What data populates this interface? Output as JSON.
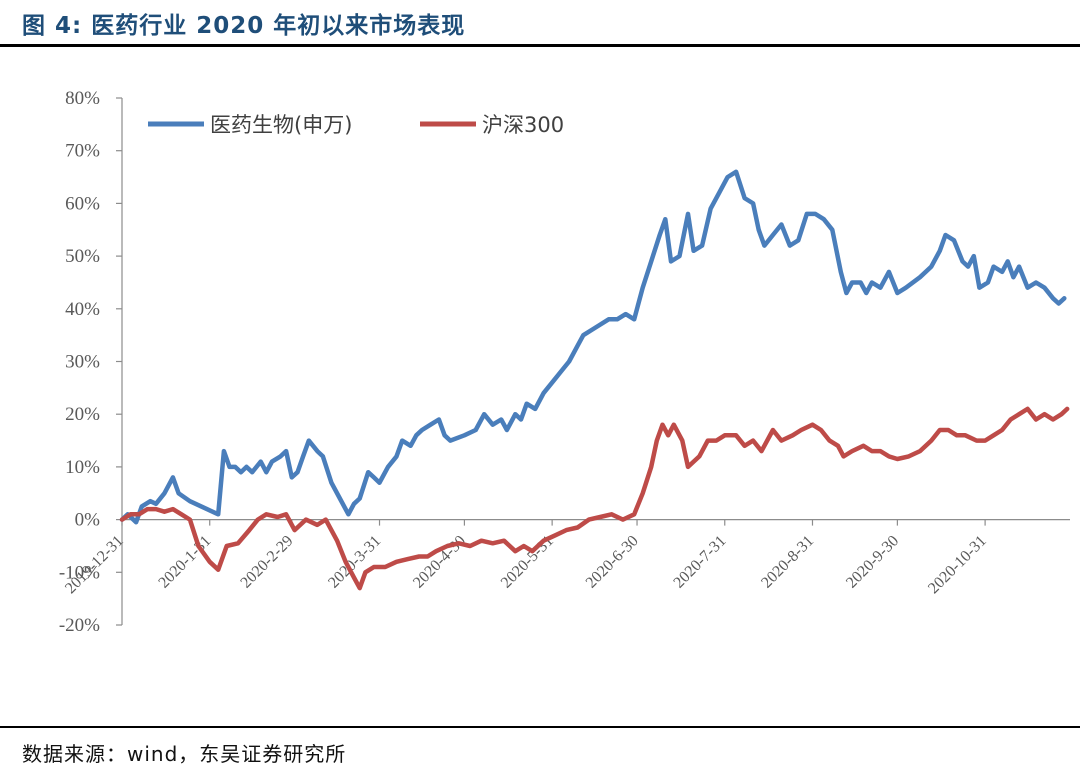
{
  "figure": {
    "title": "图 4: 医药行业 2020 年初以来市场表现",
    "source": "数据来源：wind，东吴证券研究所"
  },
  "colors": {
    "series_blue": "#4a7ebb",
    "series_red": "#be4b48",
    "axis": "#8c8c8c",
    "text": "#595959"
  },
  "chart_data": {
    "type": "line",
    "title": "",
    "xlabel": "",
    "ylabel": "",
    "ylim": [
      -0.2,
      0.8
    ],
    "yticks": [
      -0.2,
      -0.1,
      0.0,
      0.1,
      0.2,
      0.3,
      0.4,
      0.5,
      0.6,
      0.7,
      0.8
    ],
    "ytick_labels": [
      "-20%",
      "-10%",
      "0%",
      "10%",
      "20%",
      "30%",
      "40%",
      "50%",
      "60%",
      "70%",
      "80%"
    ],
    "xlim": [
      "2019-12-31",
      "2020-11-30"
    ],
    "xticks": [
      "2019-12-31",
      "2020-1-31",
      "2020-2-29",
      "2020-3-31",
      "2020-4-30",
      "2020-5-31",
      "2020-6-30",
      "2020-7-31",
      "2020-8-31",
      "2020-9-30",
      "2020-10-31"
    ],
    "grid": false,
    "legend_position": "top-left",
    "series": [
      {
        "name": "医药生物(申万)",
        "color": "#4a7ebb",
        "points": [
          [
            "2019-12-31",
            0.0
          ],
          [
            "2020-01-02",
            0.01
          ],
          [
            "2020-01-05",
            -0.005
          ],
          [
            "2020-01-07",
            0.025
          ],
          [
            "2020-01-10",
            0.035
          ],
          [
            "2020-01-12",
            0.03
          ],
          [
            "2020-01-15",
            0.05
          ],
          [
            "2020-01-18",
            0.08
          ],
          [
            "2020-01-20",
            0.05
          ],
          [
            "2020-01-24",
            0.035
          ],
          [
            "2020-01-30",
            0.02
          ],
          [
            "2020-02-03",
            0.01
          ],
          [
            "2020-02-05",
            0.13
          ],
          [
            "2020-02-07",
            0.1
          ],
          [
            "2020-02-09",
            0.1
          ],
          [
            "2020-02-11",
            0.09
          ],
          [
            "2020-02-13",
            0.1
          ],
          [
            "2020-02-15",
            0.09
          ],
          [
            "2020-02-18",
            0.11
          ],
          [
            "2020-02-20",
            0.09
          ],
          [
            "2020-02-22",
            0.11
          ],
          [
            "2020-02-25",
            0.12
          ],
          [
            "2020-02-27",
            0.13
          ],
          [
            "2020-02-29",
            0.08
          ],
          [
            "2020-03-02",
            0.09
          ],
          [
            "2020-03-04",
            0.12
          ],
          [
            "2020-03-06",
            0.15
          ],
          [
            "2020-03-09",
            0.13
          ],
          [
            "2020-03-11",
            0.12
          ],
          [
            "2020-03-14",
            0.07
          ],
          [
            "2020-03-17",
            0.04
          ],
          [
            "2020-03-20",
            0.01
          ],
          [
            "2020-03-22",
            0.03
          ],
          [
            "2020-03-24",
            0.04
          ],
          [
            "2020-03-27",
            0.09
          ],
          [
            "2020-03-29",
            0.08
          ],
          [
            "2020-03-31",
            0.07
          ],
          [
            "2020-04-03",
            0.1
          ],
          [
            "2020-04-06",
            0.12
          ],
          [
            "2020-04-08",
            0.15
          ],
          [
            "2020-04-11",
            0.14
          ],
          [
            "2020-04-13",
            0.16
          ],
          [
            "2020-04-15",
            0.17
          ],
          [
            "2020-04-18",
            0.18
          ],
          [
            "2020-04-21",
            0.19
          ],
          [
            "2020-04-23",
            0.16
          ],
          [
            "2020-04-25",
            0.15
          ],
          [
            "2020-04-30",
            0.16
          ],
          [
            "2020-05-04",
            0.17
          ],
          [
            "2020-05-07",
            0.2
          ],
          [
            "2020-05-10",
            0.18
          ],
          [
            "2020-05-13",
            0.19
          ],
          [
            "2020-05-15",
            0.17
          ],
          [
            "2020-05-18",
            0.2
          ],
          [
            "2020-05-20",
            0.19
          ],
          [
            "2020-05-22",
            0.22
          ],
          [
            "2020-05-25",
            0.21
          ],
          [
            "2020-05-28",
            0.24
          ],
          [
            "2020-05-31",
            0.26
          ],
          [
            "2020-06-03",
            0.28
          ],
          [
            "2020-06-06",
            0.3
          ],
          [
            "2020-06-09",
            0.33
          ],
          [
            "2020-06-11",
            0.35
          ],
          [
            "2020-06-14",
            0.36
          ],
          [
            "2020-06-17",
            0.37
          ],
          [
            "2020-06-20",
            0.38
          ],
          [
            "2020-06-23",
            0.38
          ],
          [
            "2020-06-26",
            0.39
          ],
          [
            "2020-06-29",
            0.38
          ],
          [
            "2020-07-02",
            0.44
          ],
          [
            "2020-07-05",
            0.49
          ],
          [
            "2020-07-08",
            0.54
          ],
          [
            "2020-07-10",
            0.57
          ],
          [
            "2020-07-12",
            0.49
          ],
          [
            "2020-07-15",
            0.5
          ],
          [
            "2020-07-18",
            0.58
          ],
          [
            "2020-07-20",
            0.51
          ],
          [
            "2020-07-23",
            0.52
          ],
          [
            "2020-07-26",
            0.59
          ],
          [
            "2020-07-29",
            0.62
          ],
          [
            "2020-08-01",
            0.65
          ],
          [
            "2020-08-04",
            0.66
          ],
          [
            "2020-08-07",
            0.61
          ],
          [
            "2020-08-10",
            0.6
          ],
          [
            "2020-08-12",
            0.55
          ],
          [
            "2020-08-14",
            0.52
          ],
          [
            "2020-08-17",
            0.54
          ],
          [
            "2020-08-20",
            0.56
          ],
          [
            "2020-08-23",
            0.52
          ],
          [
            "2020-08-26",
            0.53
          ],
          [
            "2020-08-29",
            0.58
          ],
          [
            "2020-09-01",
            0.58
          ],
          [
            "2020-09-04",
            0.57
          ],
          [
            "2020-09-07",
            0.55
          ],
          [
            "2020-09-10",
            0.47
          ],
          [
            "2020-09-12",
            0.43
          ],
          [
            "2020-09-14",
            0.45
          ],
          [
            "2020-09-17",
            0.45
          ],
          [
            "2020-09-19",
            0.43
          ],
          [
            "2020-09-21",
            0.45
          ],
          [
            "2020-09-24",
            0.44
          ],
          [
            "2020-09-27",
            0.47
          ],
          [
            "2020-09-30",
            0.43
          ],
          [
            "2020-10-03",
            0.44
          ],
          [
            "2020-10-08",
            0.46
          ],
          [
            "2020-10-12",
            0.48
          ],
          [
            "2020-10-15",
            0.51
          ],
          [
            "2020-10-17",
            0.54
          ],
          [
            "2020-10-20",
            0.53
          ],
          [
            "2020-10-23",
            0.49
          ],
          [
            "2020-10-25",
            0.48
          ],
          [
            "2020-10-27",
            0.5
          ],
          [
            "2020-10-29",
            0.44
          ],
          [
            "2020-11-01",
            0.45
          ],
          [
            "2020-11-03",
            0.48
          ],
          [
            "2020-11-06",
            0.47
          ],
          [
            "2020-11-08",
            0.49
          ],
          [
            "2020-11-10",
            0.46
          ],
          [
            "2020-11-12",
            0.48
          ],
          [
            "2020-11-15",
            0.44
          ],
          [
            "2020-11-18",
            0.45
          ],
          [
            "2020-11-21",
            0.44
          ],
          [
            "2020-11-24",
            0.42
          ],
          [
            "2020-11-26",
            0.41
          ],
          [
            "2020-11-28",
            0.42
          ]
        ]
      },
      {
        "name": "沪深300",
        "color": "#be4b48",
        "points": [
          [
            "2019-12-31",
            0.0
          ],
          [
            "2020-01-03",
            0.01
          ],
          [
            "2020-01-06",
            0.01
          ],
          [
            "2020-01-09",
            0.02
          ],
          [
            "2020-01-12",
            0.02
          ],
          [
            "2020-01-15",
            0.015
          ],
          [
            "2020-01-18",
            0.02
          ],
          [
            "2020-01-21",
            0.01
          ],
          [
            "2020-01-24",
            0.0
          ],
          [
            "2020-01-27",
            -0.05
          ],
          [
            "2020-01-31",
            -0.08
          ],
          [
            "2020-02-03",
            -0.095
          ],
          [
            "2020-02-06",
            -0.05
          ],
          [
            "2020-02-10",
            -0.045
          ],
          [
            "2020-02-14",
            -0.02
          ],
          [
            "2020-02-17",
            0.0
          ],
          [
            "2020-02-20",
            0.01
          ],
          [
            "2020-02-24",
            0.005
          ],
          [
            "2020-02-27",
            0.01
          ],
          [
            "2020-03-01",
            -0.02
          ],
          [
            "2020-03-05",
            0.0
          ],
          [
            "2020-03-09",
            -0.01
          ],
          [
            "2020-03-12",
            0.0
          ],
          [
            "2020-03-16",
            -0.04
          ],
          [
            "2020-03-19",
            -0.08
          ],
          [
            "2020-03-22",
            -0.11
          ],
          [
            "2020-03-24",
            -0.13
          ],
          [
            "2020-03-26",
            -0.1
          ],
          [
            "2020-03-29",
            -0.09
          ],
          [
            "2020-04-02",
            -0.09
          ],
          [
            "2020-04-06",
            -0.08
          ],
          [
            "2020-04-10",
            -0.075
          ],
          [
            "2020-04-14",
            -0.07
          ],
          [
            "2020-04-17",
            -0.07
          ],
          [
            "2020-04-20",
            -0.06
          ],
          [
            "2020-04-24",
            -0.05
          ],
          [
            "2020-04-28",
            -0.045
          ],
          [
            "2020-05-02",
            -0.05
          ],
          [
            "2020-05-06",
            -0.04
          ],
          [
            "2020-05-10",
            -0.045
          ],
          [
            "2020-05-14",
            -0.04
          ],
          [
            "2020-05-18",
            -0.06
          ],
          [
            "2020-05-21",
            -0.05
          ],
          [
            "2020-05-24",
            -0.06
          ],
          [
            "2020-05-28",
            -0.04
          ],
          [
            "2020-06-01",
            -0.03
          ],
          [
            "2020-06-05",
            -0.02
          ],
          [
            "2020-06-09",
            -0.015
          ],
          [
            "2020-06-13",
            0.0
          ],
          [
            "2020-06-17",
            0.005
          ],
          [
            "2020-06-21",
            0.01
          ],
          [
            "2020-06-25",
            0.0
          ],
          [
            "2020-06-29",
            0.01
          ],
          [
            "2020-07-02",
            0.05
          ],
          [
            "2020-07-05",
            0.1
          ],
          [
            "2020-07-07",
            0.15
          ],
          [
            "2020-07-09",
            0.18
          ],
          [
            "2020-07-11",
            0.16
          ],
          [
            "2020-07-13",
            0.18
          ],
          [
            "2020-07-16",
            0.15
          ],
          [
            "2020-07-18",
            0.1
          ],
          [
            "2020-07-22",
            0.12
          ],
          [
            "2020-07-25",
            0.15
          ],
          [
            "2020-07-28",
            0.15
          ],
          [
            "2020-07-31",
            0.16
          ],
          [
            "2020-08-04",
            0.16
          ],
          [
            "2020-08-07",
            0.14
          ],
          [
            "2020-08-10",
            0.15
          ],
          [
            "2020-08-13",
            0.13
          ],
          [
            "2020-08-17",
            0.17
          ],
          [
            "2020-08-20",
            0.15
          ],
          [
            "2020-08-24",
            0.16
          ],
          [
            "2020-08-27",
            0.17
          ],
          [
            "2020-08-31",
            0.18
          ],
          [
            "2020-09-03",
            0.17
          ],
          [
            "2020-09-06",
            0.15
          ],
          [
            "2020-09-09",
            0.14
          ],
          [
            "2020-09-11",
            0.12
          ],
          [
            "2020-09-14",
            0.13
          ],
          [
            "2020-09-18",
            0.14
          ],
          [
            "2020-09-21",
            0.13
          ],
          [
            "2020-09-24",
            0.13
          ],
          [
            "2020-09-27",
            0.12
          ],
          [
            "2020-09-30",
            0.115
          ],
          [
            "2020-10-04",
            0.12
          ],
          [
            "2020-10-08",
            0.13
          ],
          [
            "2020-10-12",
            0.15
          ],
          [
            "2020-10-15",
            0.17
          ],
          [
            "2020-10-18",
            0.17
          ],
          [
            "2020-10-21",
            0.16
          ],
          [
            "2020-10-24",
            0.16
          ],
          [
            "2020-10-28",
            0.15
          ],
          [
            "2020-10-31",
            0.15
          ],
          [
            "2020-11-03",
            0.16
          ],
          [
            "2020-11-06",
            0.17
          ],
          [
            "2020-11-09",
            0.19
          ],
          [
            "2020-11-12",
            0.2
          ],
          [
            "2020-11-15",
            0.21
          ],
          [
            "2020-11-18",
            0.19
          ],
          [
            "2020-11-21",
            0.2
          ],
          [
            "2020-11-24",
            0.19
          ],
          [
            "2020-11-27",
            0.2
          ],
          [
            "2020-11-29",
            0.21
          ]
        ]
      }
    ]
  }
}
